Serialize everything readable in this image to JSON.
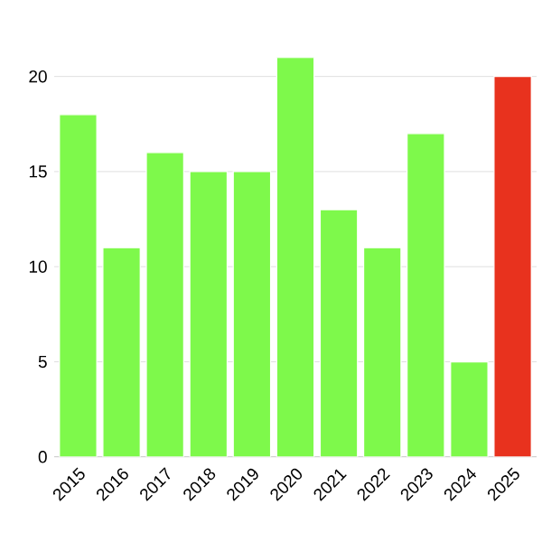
{
  "chart_data": {
    "type": "bar",
    "categories": [
      "2015",
      "2016",
      "2017",
      "2018",
      "2019",
      "2020",
      "2021",
      "2022",
      "2023",
      "2024",
      "2025"
    ],
    "values": [
      18,
      11,
      16,
      15,
      15,
      21,
      13,
      11,
      17,
      5,
      20
    ],
    "colors": [
      "#7ef94b",
      "#7ef94b",
      "#7ef94b",
      "#7ef94b",
      "#7ef94b",
      "#7ef94b",
      "#7ef94b",
      "#7ef94b",
      "#7ef94b",
      "#7ef94b",
      "#e8321e"
    ],
    "ylim": [
      0,
      21
    ],
    "yticks": [
      0,
      5,
      10,
      15,
      20
    ],
    "grid": "y"
  }
}
